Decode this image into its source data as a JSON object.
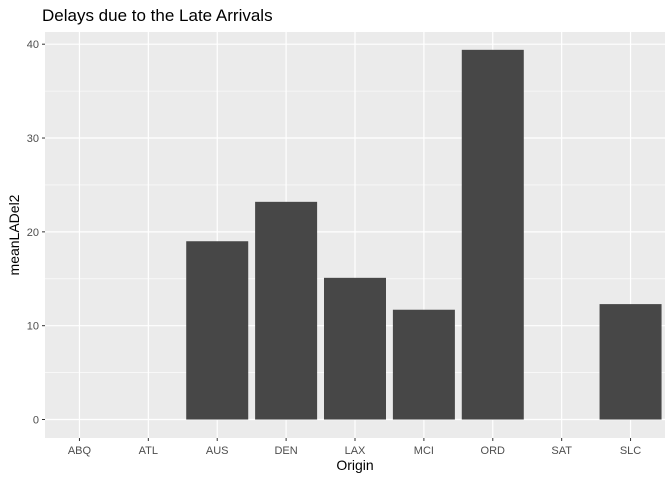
{
  "chart_data": {
    "type": "bar",
    "title": "Delays due to the Late Arrivals",
    "xlabel": "Origin",
    "ylabel": "meanLADel2",
    "categories": [
      "ABQ",
      "ATL",
      "AUS",
      "DEN",
      "LAX",
      "MCI",
      "ORD",
      "SAT",
      "SLC"
    ],
    "values": [
      null,
      null,
      19.0,
      23.2,
      15.1,
      11.7,
      39.4,
      null,
      12.3
    ],
    "ylim": [
      -1.97,
      41.3
    ],
    "yticks": [
      0,
      10,
      20,
      30,
      40
    ],
    "grid": true,
    "legend": "none",
    "colors": {
      "panel_background": "#ebebeb",
      "grid": "#ffffff",
      "bar": "#474747",
      "tick_label": "#4d4d4d"
    }
  }
}
